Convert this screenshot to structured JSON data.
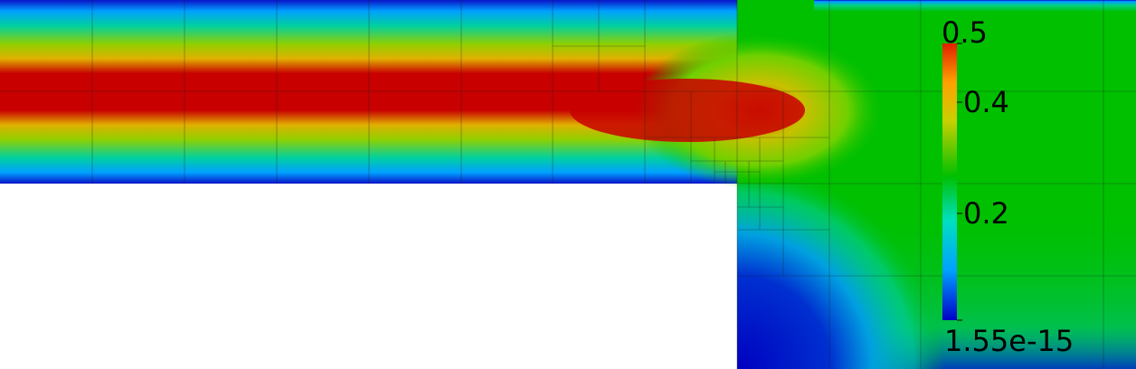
{
  "colorbar": {
    "max_label": "0.5",
    "tick_04": "0.4",
    "tick_02": "0.2",
    "min_label": "1.55e-15",
    "range": [
      1.55e-15,
      0.5
    ],
    "colormap": [
      "#0000c8",
      "#00a0ff",
      "#00e0c0",
      "#00c000",
      "#c8d000",
      "#ffa000",
      "#e02000"
    ]
  },
  "field": {
    "max_value": 0.5,
    "inlet_core_color": "#c80000",
    "outlet_color": "#00c000",
    "wall_color": "#0a14c8",
    "mesh_line_color": "#1e1e1e"
  }
}
